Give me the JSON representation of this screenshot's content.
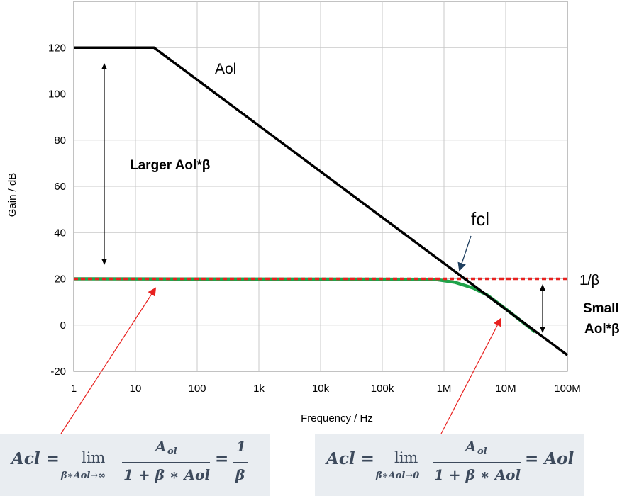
{
  "chart_data": {
    "type": "line",
    "xscale": "log",
    "xlim": [
      1,
      100000000
    ],
    "ylim": [
      -20,
      140
    ],
    "grid": true,
    "xlabel": "Frequency / Hz",
    "ylabel": "Gain / dB",
    "x_ticks": [
      {
        "value": 1,
        "label": "1"
      },
      {
        "value": 10,
        "label": "10"
      },
      {
        "value": 100,
        "label": "100"
      },
      {
        "value": 1000,
        "label": "1k"
      },
      {
        "value": 10000,
        "label": "10k"
      },
      {
        "value": 100000,
        "label": "100k"
      },
      {
        "value": 1000000,
        "label": "1M"
      },
      {
        "value": 10000000,
        "label": "10M"
      },
      {
        "value": 100000000,
        "label": "100M"
      }
    ],
    "y_ticks": [
      -20,
      0,
      20,
      40,
      60,
      80,
      100,
      120
    ],
    "series": [
      {
        "name": "Aol",
        "color": "#000000",
        "style": "solid",
        "x": [
          1,
          20,
          100000000
        ],
        "y": [
          120,
          120,
          -13
        ]
      },
      {
        "name": "1/β",
        "color": "#e8211f",
        "style": "dashed",
        "x": [
          1,
          100000000
        ],
        "y": [
          20,
          20
        ]
      },
      {
        "name": "",
        "color": "#1fa34a",
        "style": "solid",
        "x": [
          1,
          700000,
          1500000,
          3000000,
          5000000,
          10000000,
          30000000
        ],
        "y": [
          20,
          19.8,
          18.5,
          16,
          13,
          7,
          -3
        ]
      }
    ],
    "annotations": {
      "aol_label": "Aol",
      "fcl_label": "fcl",
      "beta_label": "1/β",
      "larger_label": "Larger Aol*β",
      "small_label_line1": "Small",
      "small_label_line2": "Aol*β"
    }
  },
  "formulas": {
    "left": {
      "lhs": "Acl =",
      "lim": "lim",
      "lim_sub": "β∗Aol→∞",
      "numerator": "A",
      "numerator_sub": "ol",
      "denominator": "1 + β ∗ Aol",
      "equals": "=",
      "rhs_num": "1",
      "rhs_den": "β"
    },
    "right": {
      "lhs": "Acl =",
      "lim": "lim",
      "lim_sub": "β∗Aol→0",
      "numerator": "A",
      "numerator_sub": "ol",
      "denominator": "1 + β ∗ Aol",
      "rhs": "= Aol"
    }
  },
  "colors": {
    "grid": "#c8c8c8",
    "aol": "#000000",
    "beta": "#e8211f",
    "acl": "#1fa34a",
    "fcl_arrow": "#1f3f5f",
    "formula_bg": "#e9edf1",
    "formula_text": "#3d4a5c"
  }
}
